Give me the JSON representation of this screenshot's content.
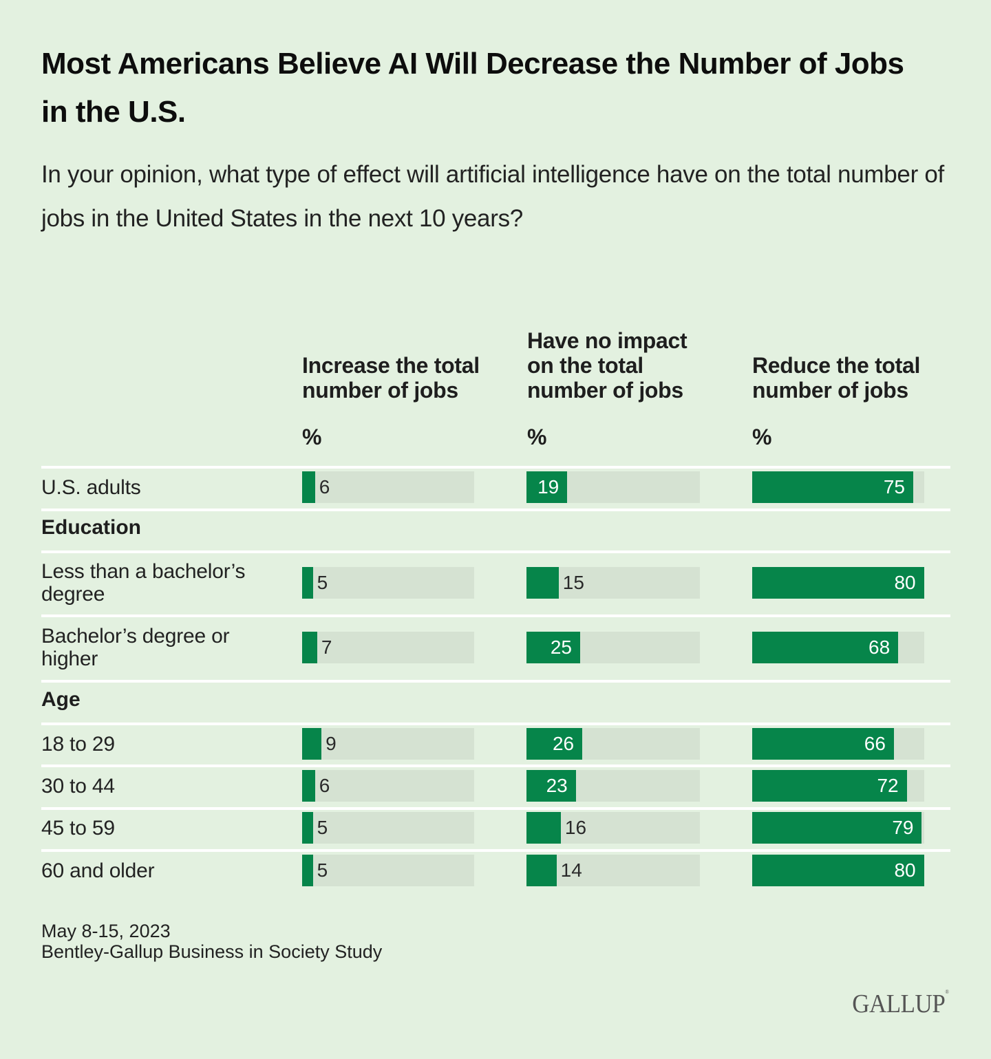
{
  "chart_data": {
    "type": "bar",
    "title": "Most Americans Believe AI Will Decrease the Number of Jobs in the U.S.",
    "subtitle": "In your opinion, what type of effect will artificial intelligence have on the total number of jobs in the United States in the next 10 years?",
    "unit_label": "%",
    "xlim": [
      0,
      80
    ],
    "series": [
      {
        "name": "Increase the total number of jobs",
        "values": [
          6,
          5,
          7,
          9,
          6,
          5,
          5
        ]
      },
      {
        "name": "Have no impact on the total number of jobs",
        "values": [
          19,
          15,
          25,
          26,
          23,
          16,
          14
        ]
      },
      {
        "name": "Reduce the total number of jobs",
        "values": [
          75,
          80,
          68,
          66,
          72,
          79,
          80
        ]
      }
    ],
    "categories": [
      "U.S. adults",
      "Less than a bachelor’s degree",
      "Bachelor’s degree or higher",
      "18 to 29",
      "30 to 44",
      "45 to 59",
      "60 and older"
    ],
    "groups": [
      {
        "label": "Education",
        "categories": [
          "Less than a bachelor’s degree",
          "Bachelor’s degree or higher"
        ]
      },
      {
        "label": "Age",
        "categories": [
          "18 to 29",
          "30 to 44",
          "45 to 59",
          "60 and older"
        ]
      }
    ]
  },
  "header": {
    "title": "Most Americans Believe AI Will Decrease the Number of Jobs in the U.S.",
    "subtitle": "In your opinion, what type of effect will artificial intelligence have on the total number of jobs in the United States in the next 10 years?"
  },
  "columns": [
    {
      "label": "Increase the total number of jobs",
      "unit": "%"
    },
    {
      "label": "Have no impact on the total number of jobs",
      "unit": "%"
    },
    {
      "label": "Reduce the total number of jobs",
      "unit": "%"
    }
  ],
  "rows": [
    {
      "label": "U.S. adults",
      "values": [
        6,
        19,
        75
      ]
    },
    {
      "group": "Education"
    },
    {
      "label": "Less than a bachelor’s degree",
      "values": [
        5,
        15,
        80
      ]
    },
    {
      "label": "Bachelor’s degree or higher",
      "values": [
        7,
        25,
        68
      ]
    },
    {
      "group": "Age"
    },
    {
      "label": "18 to 29",
      "values": [
        9,
        26,
        66
      ]
    },
    {
      "label": "30 to 44",
      "values": [
        6,
        23,
        72
      ]
    },
    {
      "label": "45 to 59",
      "values": [
        5,
        16,
        79
      ]
    },
    {
      "label": "60 and older",
      "values": [
        5,
        14,
        80
      ]
    }
  ],
  "footer": {
    "date": "May 8-15, 2023",
    "source": "Bentley-Gallup Business in Society Study"
  },
  "logo": {
    "text": "GALLUP",
    "mark": "®"
  },
  "colors": {
    "background": "#e3f1e0",
    "bar": "#06854a",
    "track": "#d5e2d2",
    "separator": "#ffffff"
  }
}
